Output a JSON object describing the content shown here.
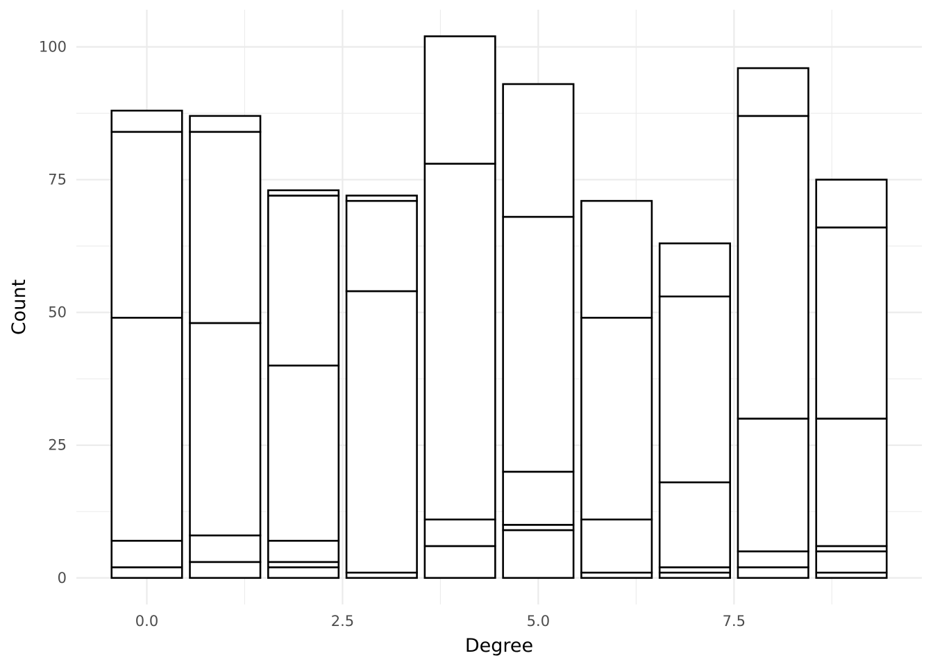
{
  "chart_data": {
    "type": "bar",
    "stacked": true,
    "xlabel": "Degree",
    "ylabel": "Count",
    "xlim": [
      -0.9,
      9.9
    ],
    "ylim": [
      -5,
      107
    ],
    "x_ticks": [
      0.0,
      2.5,
      5.0,
      7.5
    ],
    "x_tick_labels": [
      "0.0",
      "2.5",
      "5.0",
      "7.5"
    ],
    "y_ticks": [
      0,
      25,
      50,
      75,
      100
    ],
    "y_tick_labels": [
      "0",
      "25",
      "50",
      "75",
      "100"
    ],
    "grid": true,
    "legend": "none",
    "fill_color": "#ffffff",
    "outline_color": "#000000",
    "bar_width": 0.9,
    "x": [
      0,
      1,
      2,
      3,
      4,
      5,
      6,
      7,
      8,
      9
    ],
    "stack_boundaries": [
      [
        0,
        2,
        7,
        49,
        84,
        88
      ],
      [
        0,
        3,
        8,
        48,
        84,
        87
      ],
      [
        0,
        2,
        3,
        7,
        40,
        72,
        73
      ],
      [
        0,
        1,
        54,
        71,
        72
      ],
      [
        0,
        6,
        11,
        78,
        102
      ],
      [
        0,
        9,
        10,
        20,
        68,
        93
      ],
      [
        0,
        1,
        11,
        49,
        71
      ],
      [
        0,
        1,
        2,
        18,
        53,
        63
      ],
      [
        0,
        2,
        5,
        30,
        87,
        96
      ],
      [
        0,
        1,
        5,
        6,
        30,
        66,
        75
      ]
    ],
    "totals": [
      88,
      87,
      73,
      72,
      102,
      93,
      71,
      63,
      96,
      75
    ]
  }
}
